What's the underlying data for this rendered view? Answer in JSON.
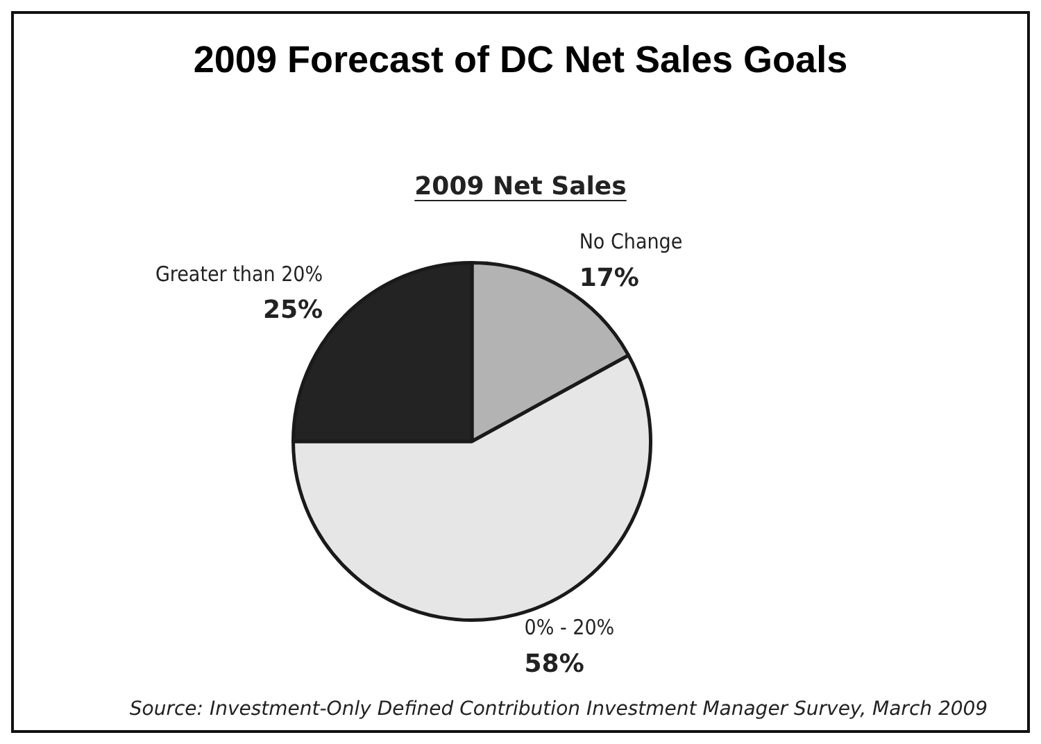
{
  "chart_data": {
    "type": "pie",
    "title": "2009 Forecast of DC Net Sales Goals",
    "subtitle": "2009 Net Sales",
    "categories": [
      "No Change",
      "0% - 20%",
      "Greater than 20%"
    ],
    "values": [
      17,
      58,
      25
    ],
    "colors": [
      "#b3b3b3",
      "#e6e6e6",
      "#232323"
    ],
    "value_labels": [
      "17%",
      "58%",
      "25%"
    ],
    "annotations": [
      "Source: Investment-Only Defined Contribution Investment Manager Survey, March 2009"
    ]
  }
}
